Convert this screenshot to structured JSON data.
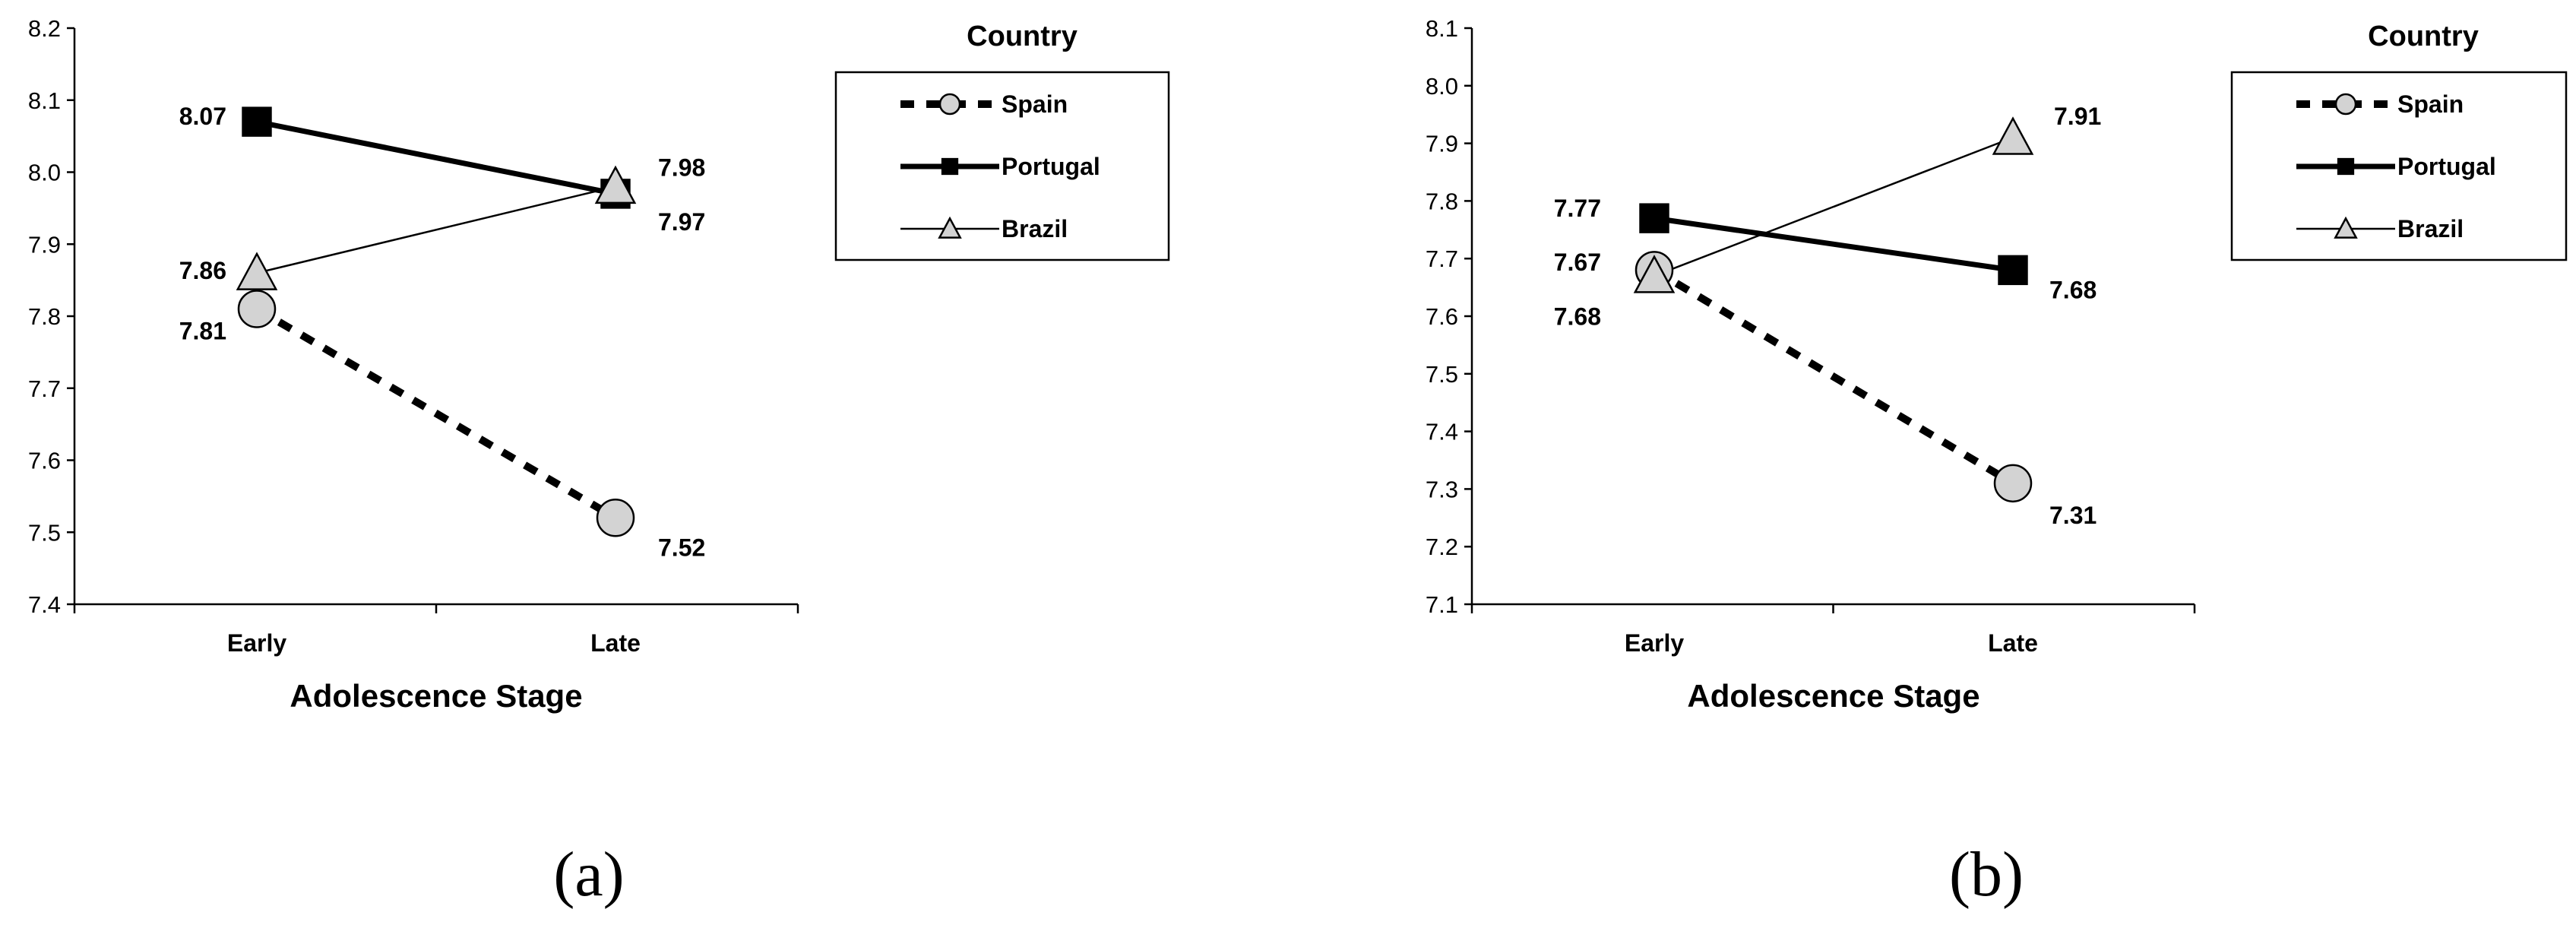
{
  "chart_data": [
    {
      "type": "line",
      "panel_label": "(a)",
      "categories": [
        "Early",
        "Late"
      ],
      "xlabel": "Adolescence Stage",
      "ylim": [
        7.4,
        8.2
      ],
      "yticks": [
        "7.4",
        "7.5",
        "7.6",
        "7.7",
        "7.8",
        "7.9",
        "8.0",
        "8.1",
        "8.2"
      ],
      "legend_title": "Country",
      "legend_position": "top-right",
      "series": [
        {
          "name": "Spain",
          "values": [
            7.81,
            7.52
          ],
          "labels": [
            "7.81",
            "7.52"
          ],
          "style": "dashed",
          "marker": "circle",
          "color": "#000000",
          "marker_fill": "#d3d3d3"
        },
        {
          "name": "Portugal",
          "values": [
            8.07,
            7.97
          ],
          "labels": [
            "8.07",
            "7.97"
          ],
          "style": "thick",
          "marker": "square",
          "color": "#000000",
          "marker_fill": "#000000"
        },
        {
          "name": "Brazil",
          "values": [
            7.86,
            7.98
          ],
          "labels": [
            "7.86",
            "7.98"
          ],
          "style": "thin",
          "marker": "triangle",
          "color": "#000000",
          "marker_fill": "#d3d3d3"
        }
      ]
    },
    {
      "type": "line",
      "panel_label": "(b)",
      "categories": [
        "Early",
        "Late"
      ],
      "xlabel": "Adolescence Stage",
      "ylim": [
        7.1,
        8.1
      ],
      "yticks": [
        "7.1",
        "7.2",
        "7.3",
        "7.4",
        "7.5",
        "7.6",
        "7.7",
        "7.8",
        "7.9",
        "8.0",
        "8.1"
      ],
      "legend_title": "Country",
      "legend_position": "top-right",
      "series": [
        {
          "name": "Spain",
          "values": [
            7.68,
            7.31
          ],
          "labels": [
            "7.68",
            "7.31"
          ],
          "style": "dashed",
          "marker": "circle",
          "color": "#000000",
          "marker_fill": "#d3d3d3"
        },
        {
          "name": "Portugal",
          "values": [
            7.77,
            7.68
          ],
          "labels": [
            "7.77",
            "7.68"
          ],
          "style": "thick",
          "marker": "square",
          "color": "#000000",
          "marker_fill": "#000000"
        },
        {
          "name": "Brazil",
          "values": [
            7.67,
            7.91
          ],
          "labels": [
            "7.67",
            "7.91"
          ],
          "style": "thin",
          "marker": "triangle",
          "color": "#000000",
          "marker_fill": "#d3d3d3"
        }
      ]
    }
  ]
}
